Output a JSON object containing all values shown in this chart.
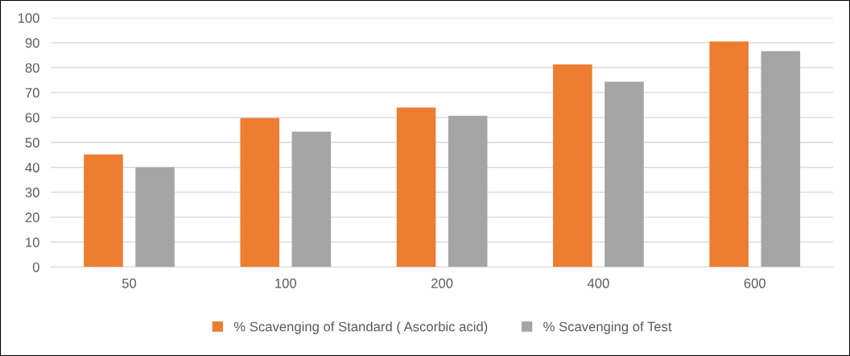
{
  "chart_data": {
    "type": "bar",
    "categories": [
      "50",
      "100",
      "200",
      "400",
      "600"
    ],
    "series": [
      {
        "name": "% Scavenging of Standard ( Ascorbic acid)",
        "color": "#ed7d31",
        "values": [
          45.2,
          59.8,
          64,
          81.3,
          90.5
        ]
      },
      {
        "name": "% Scavenging of Test",
        "color": "#a5a5a5",
        "values": [
          40,
          54.3,
          60.7,
          74.3,
          86.6
        ]
      }
    ],
    "ylim": [
      0,
      100
    ],
    "yticks": [
      0,
      10,
      20,
      30,
      40,
      50,
      60,
      70,
      80,
      90,
      100
    ],
    "grid": "y",
    "legend": "bottom"
  }
}
